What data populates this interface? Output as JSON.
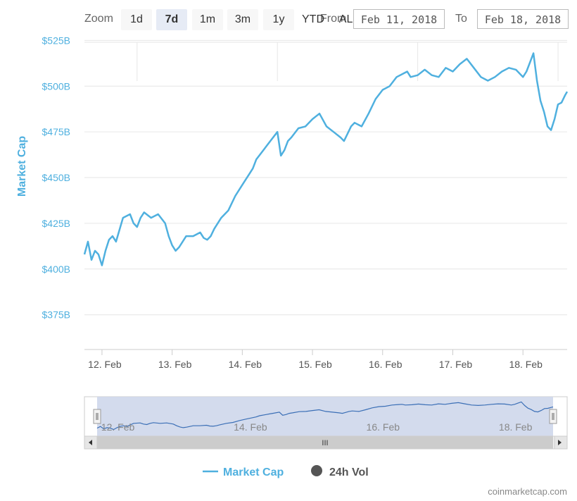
{
  "toolbar": {
    "zoom_label": "Zoom",
    "buttons": [
      "1d",
      "7d",
      "1m",
      "3m",
      "1y",
      "YTD",
      "ALL"
    ],
    "active": "7d",
    "from_label": "From",
    "to_label": "To",
    "from_value": "Feb 11, 2018",
    "to_value": "Feb 18, 2018"
  },
  "chart_data": {
    "type": "line",
    "ylabel": "Market Cap",
    "y_ticks": [
      "$375B",
      "$400B",
      "$425B",
      "$450B",
      "$475B",
      "$500B",
      "$525B"
    ],
    "y_tick_values": [
      375,
      400,
      425,
      450,
      475,
      500,
      525
    ],
    "x_ticks": [
      "12. Feb",
      "13. Feb",
      "14. Feb",
      "15. Feb",
      "16. Feb",
      "17. Feb",
      "18. Feb"
    ],
    "x_tick_values": [
      12,
      13,
      14,
      15,
      16,
      17,
      18
    ],
    "xlim": [
      11.75,
      18.63
    ],
    "ylim": [
      356,
      524
    ],
    "series": [
      {
        "name": "Market Cap",
        "color": "#4fb0df",
        "x": [
          11.75,
          11.8,
          11.85,
          11.9,
          11.95,
          12.0,
          12.05,
          12.1,
          12.15,
          12.2,
          12.3,
          12.4,
          12.45,
          12.5,
          12.55,
          12.6,
          12.7,
          12.8,
          12.9,
          12.95,
          13.0,
          13.05,
          13.1,
          13.2,
          13.3,
          13.4,
          13.45,
          13.5,
          13.55,
          13.6,
          13.7,
          13.8,
          13.9,
          14.0,
          14.1,
          14.15,
          14.2,
          14.3,
          14.4,
          14.5,
          14.55,
          14.6,
          14.65,
          14.7,
          14.8,
          14.9,
          15.0,
          15.1,
          15.2,
          15.3,
          15.4,
          15.45,
          15.5,
          15.55,
          15.6,
          15.7,
          15.8,
          15.9,
          16.0,
          16.1,
          16.2,
          16.3,
          16.35,
          16.4,
          16.5,
          16.6,
          16.7,
          16.8,
          16.9,
          17.0,
          17.1,
          17.2,
          17.3,
          17.4,
          17.5,
          17.6,
          17.7,
          17.8,
          17.9,
          18.0,
          18.05,
          18.1,
          18.15,
          18.2,
          18.25,
          18.3,
          18.35,
          18.4,
          18.45,
          18.5,
          18.55,
          18.6,
          18.63
        ],
        "values": [
          408,
          415,
          405,
          410,
          408,
          402,
          410,
          416,
          418,
          415,
          428,
          430,
          425,
          423,
          428,
          431,
          428,
          430,
          425,
          418,
          413,
          410,
          412,
          418,
          418,
          420,
          417,
          416,
          418,
          422,
          428,
          432,
          440,
          446,
          452,
          455,
          460,
          465,
          470,
          475,
          462,
          465,
          470,
          472,
          477,
          478,
          482,
          485,
          478,
          475,
          472,
          470,
          474,
          478,
          480,
          478,
          485,
          493,
          498,
          500,
          505,
          507,
          508,
          505,
          506,
          509,
          506,
          505,
          510,
          508,
          512,
          515,
          510,
          505,
          503,
          505,
          508,
          510,
          509,
          505,
          508,
          513,
          518,
          503,
          492,
          486,
          478,
          476,
          482,
          490,
          491,
          495,
          497
        ]
      },
      {
        "name": "24h Vol",
        "color": "#555555",
        "values": []
      }
    ]
  },
  "navigator": {
    "x_ticks": [
      "12. Feb",
      "14. Feb",
      "16. Feb",
      "18. Feb"
    ],
    "x_tick_values": [
      12,
      14,
      16,
      18
    ],
    "scroll_label": "III"
  },
  "credit": "coinmarketcap.com"
}
